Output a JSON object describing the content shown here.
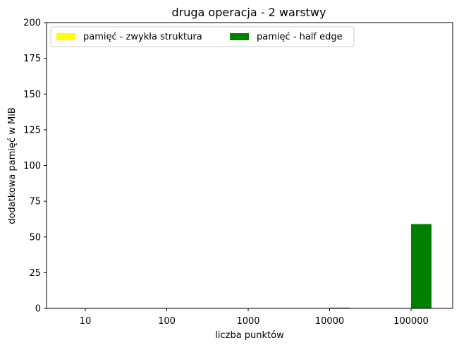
{
  "chart_data": {
    "type": "bar",
    "title": "druga operacja - 2 warstwy",
    "xlabel": "liczba punktów",
    "ylabel": "dodatkowa pamięć w MiB",
    "categories": [
      "10",
      "100",
      "1000",
      "10000",
      "100000"
    ],
    "ylim": [
      0,
      200
    ],
    "yticks": [
      "0",
      "25",
      "50",
      "75",
      "100",
      "125",
      "150",
      "175",
      "200"
    ],
    "series": [
      {
        "name": "pamięć - zwykła struktura",
        "color": "#ffff00",
        "values": [
          0,
          0,
          0,
          0,
          0
        ]
      },
      {
        "name": "pamięć - half edge",
        "color": "#008000",
        "values": [
          0,
          0,
          0,
          0.5,
          59
        ]
      }
    ],
    "legend": {
      "placement": "top-left",
      "columns": 2
    },
    "grid": false
  }
}
